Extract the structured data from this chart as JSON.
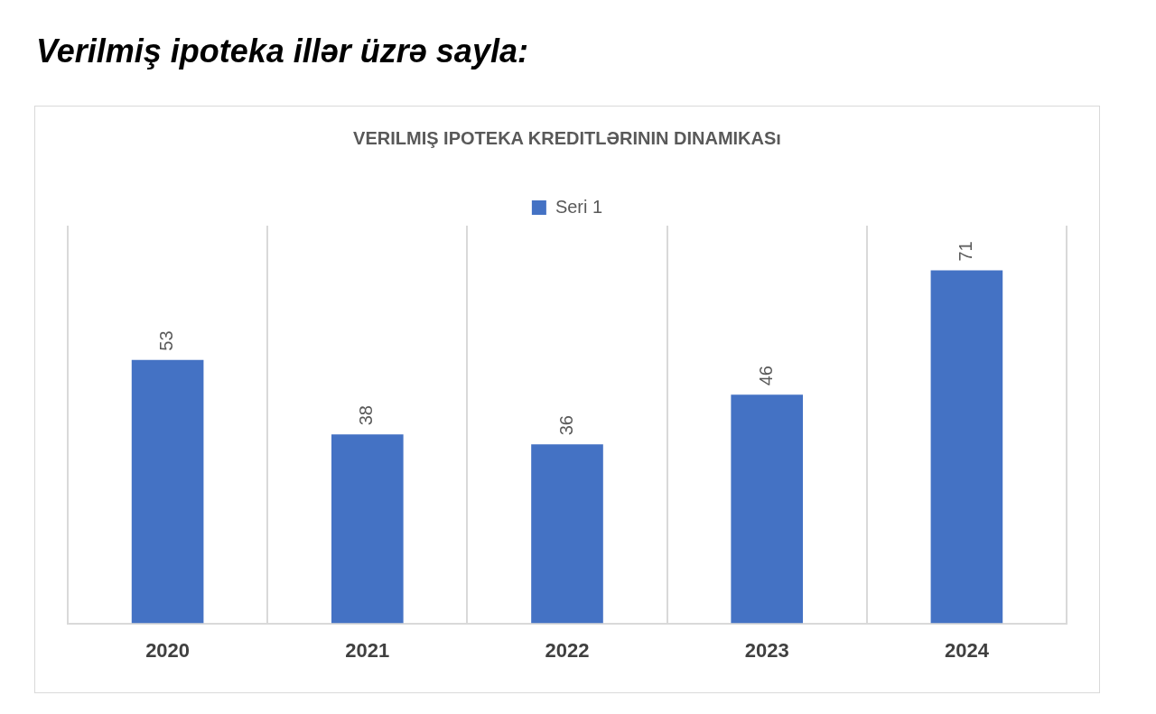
{
  "chart_data": {
    "type": "bar",
    "title": "Verilmiş ipoteka illər üzrə sayla:",
    "subtitle": "VERILMIŞ IPOTEKA KREDITLƏRININ DINAMIKASı",
    "categories": [
      "2020",
      "2021",
      "2022",
      "2023",
      "2024"
    ],
    "series": [
      {
        "name": "Seri 1",
        "color": "#4472c4",
        "values": [
          53,
          38,
          36,
          46,
          71
        ]
      }
    ],
    "data_labels": true,
    "grid": "x",
    "legend": "top"
  }
}
